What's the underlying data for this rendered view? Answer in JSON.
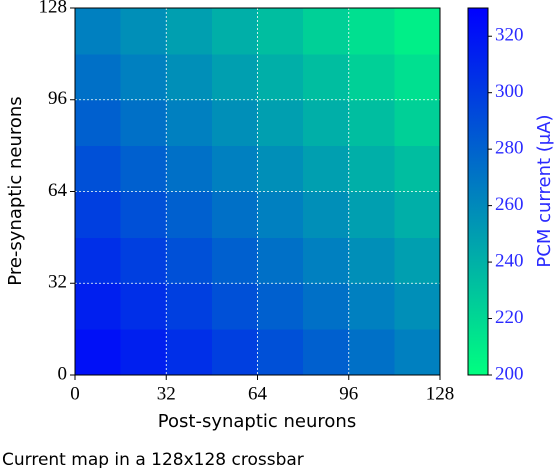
{
  "chart_data": {
    "type": "heatmap",
    "xlabel": "Post-synaptic neurons",
    "ylabel": "Pre-synaptic neurons",
    "x_bins": [
      0,
      16,
      32,
      48,
      64,
      80,
      96,
      112,
      128
    ],
    "y_bins": [
      0,
      16,
      32,
      48,
      64,
      80,
      96,
      112,
      128
    ],
    "z": [
      [
        322,
        314,
        306,
        298,
        289,
        281,
        273,
        265
      ],
      [
        314,
        306,
        298,
        289,
        281,
        273,
        265,
        257
      ],
      [
        306,
        298,
        289,
        281,
        273,
        265,
        257,
        249
      ],
      [
        298,
        289,
        281,
        273,
        265,
        257,
        249,
        241
      ],
      [
        289,
        281,
        273,
        265,
        257,
        249,
        241,
        233
      ],
      [
        281,
        273,
        265,
        257,
        249,
        241,
        233,
        224
      ],
      [
        273,
        265,
        257,
        249,
        241,
        233,
        224,
        216
      ],
      [
        265,
        257,
        249,
        241,
        233,
        224,
        216,
        208
      ]
    ],
    "xlim": [
      0,
      128
    ],
    "ylim": [
      0,
      128
    ],
    "xticks": [
      0,
      32,
      64,
      96,
      128
    ],
    "yticks": [
      0,
      32,
      64,
      96,
      128
    ],
    "grid": true,
    "color_low": "#00ff80",
    "color_high": "#0000ff",
    "clim": [
      200,
      330
    ],
    "cticks": [
      200,
      220,
      240,
      260,
      280,
      300,
      320
    ],
    "colorbar_label": "PCM current (μA)",
    "colorbar_tick_color": "#2a2aff"
  },
  "caption": "Current map in a 128x128 crossbar"
}
